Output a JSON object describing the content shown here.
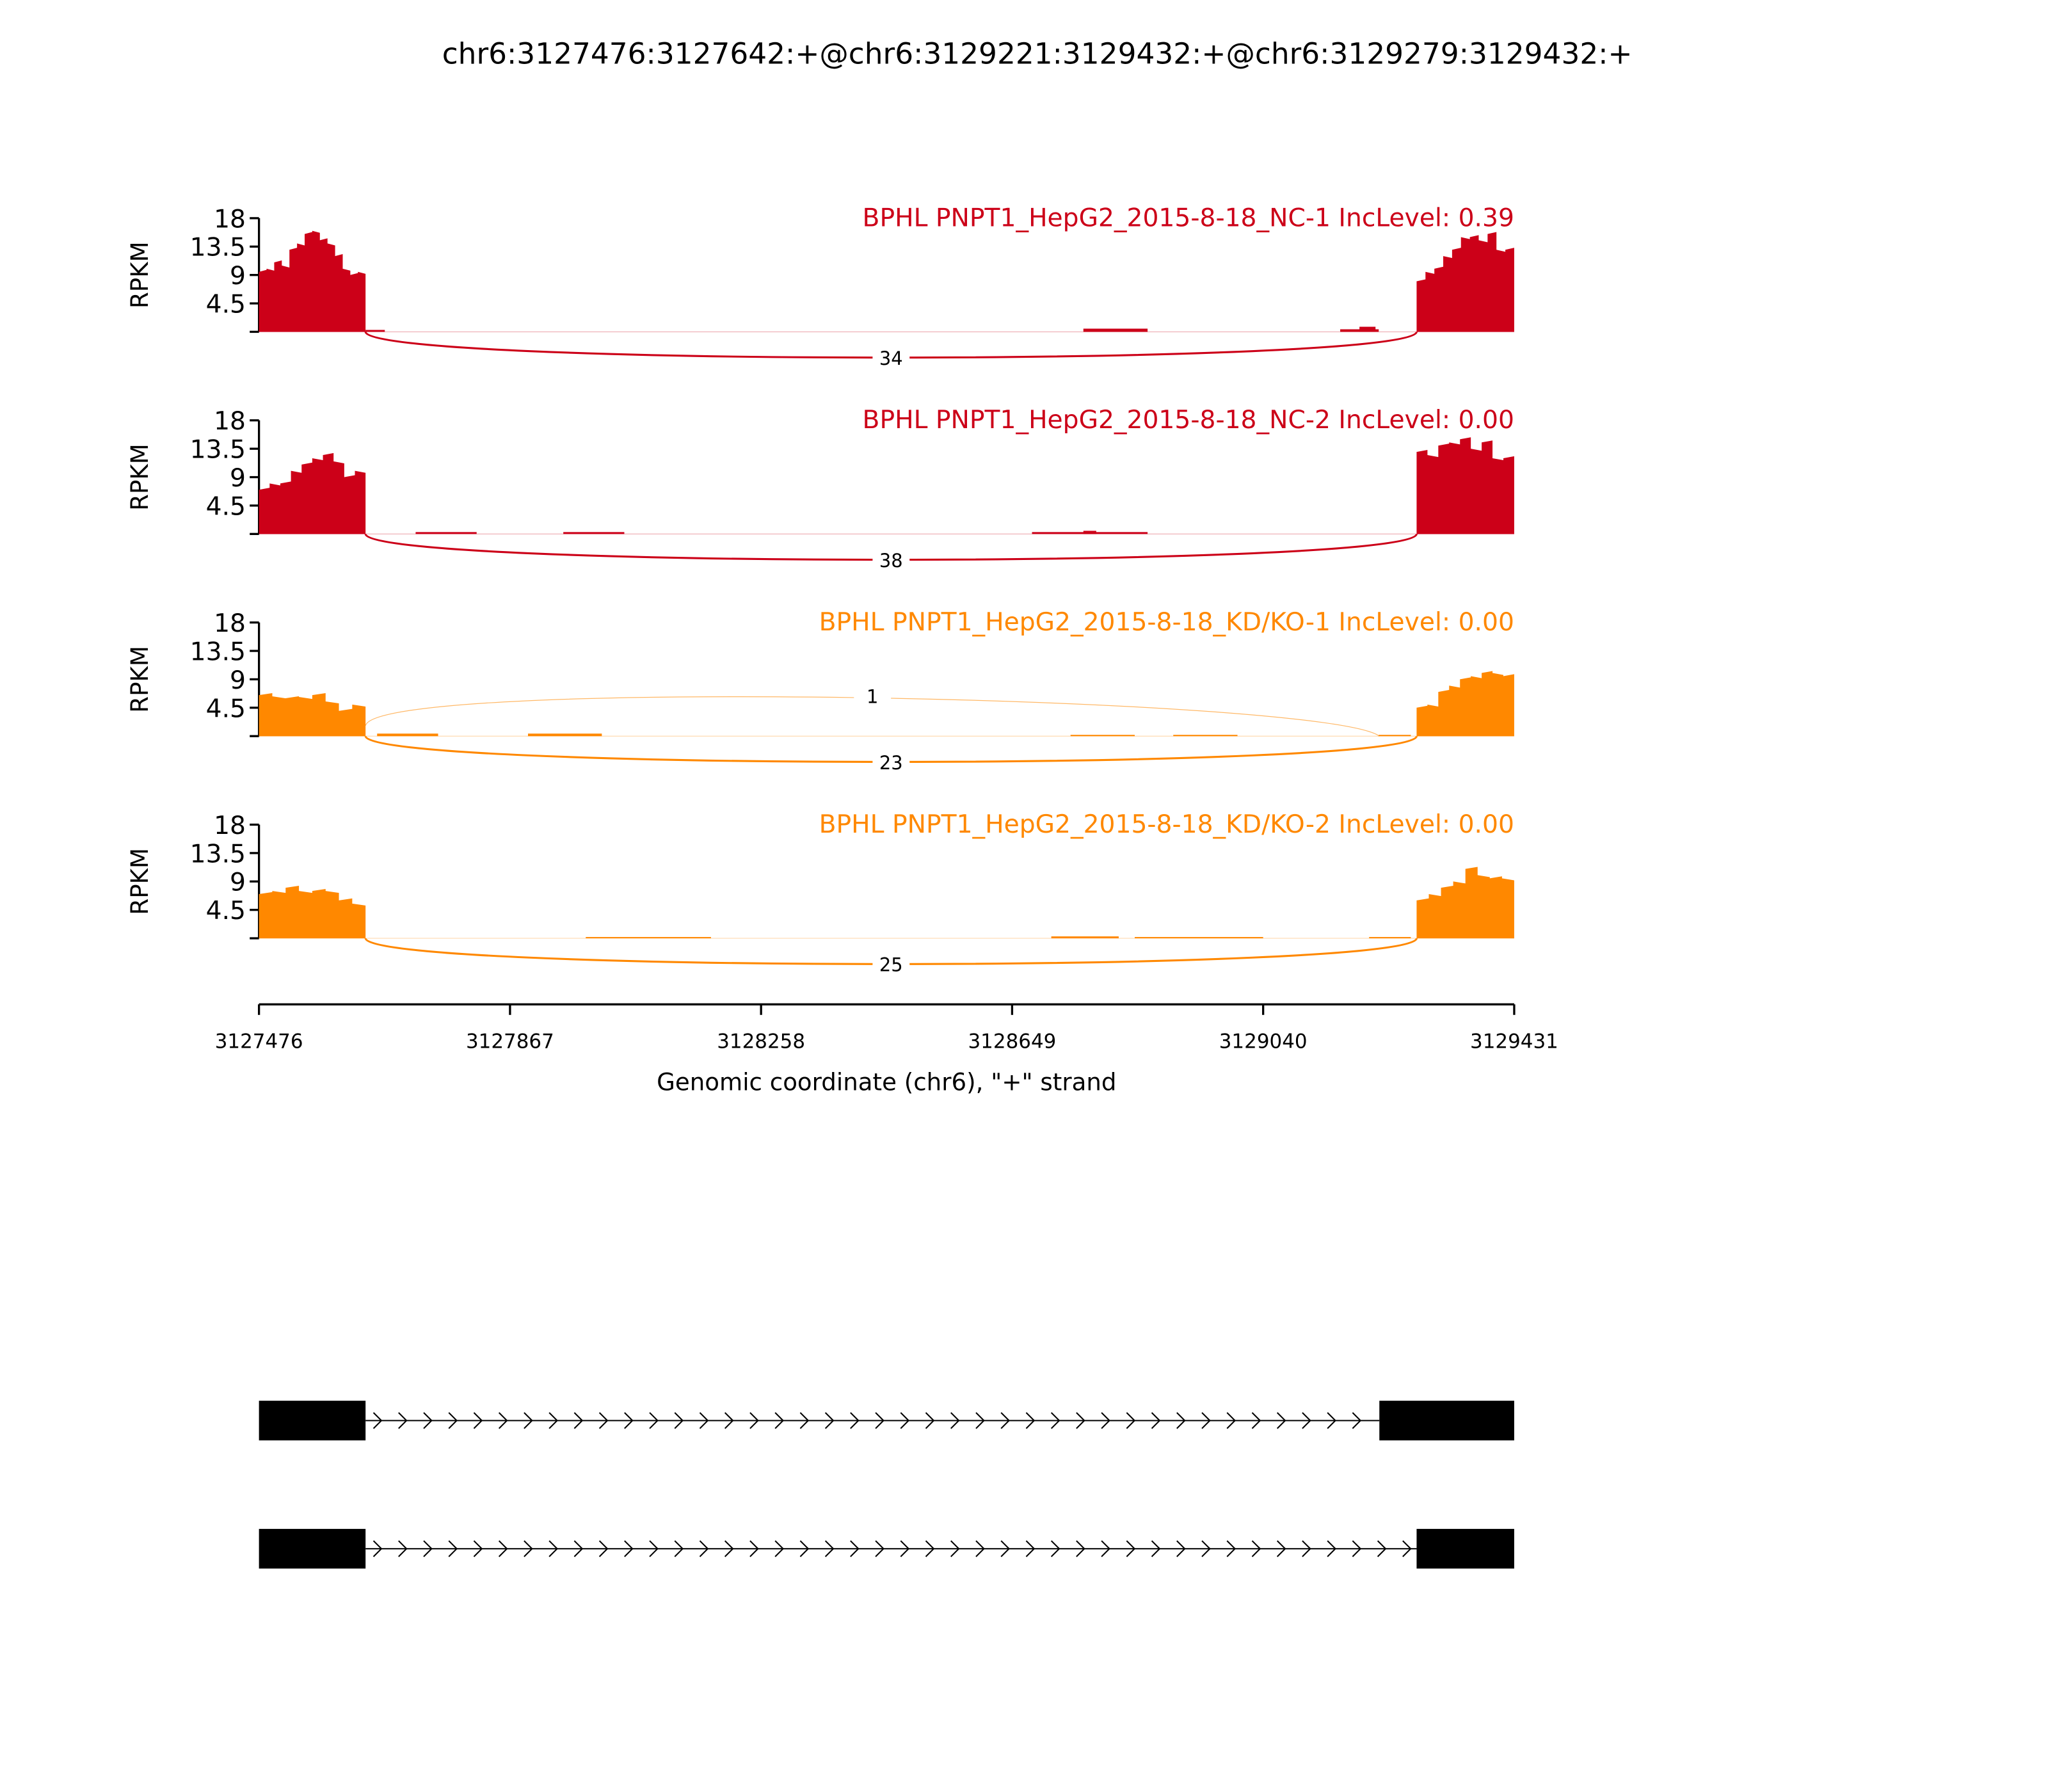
{
  "chart_data": {
    "type": "area",
    "title": "chr6:3127476:3127642:+@chr6:3129221:3129432:+@chr6:3129279:3129432:+",
    "xlabel": "Genomic coordinate (chr6), \"+\" strand",
    "xlim": [
      3127476,
      3129431
    ],
    "xticks": [
      "3127476",
      "3127867",
      "3128258",
      "3128649",
      "3129040",
      "3129431"
    ],
    "ylabel": "RPKM",
    "ylim": [
      0,
      18
    ],
    "yticks": [
      "4.5",
      "9",
      "13.5",
      "18"
    ],
    "grid": false,
    "tracks": [
      {
        "label": "BPHL PNPT1_HepG2_2015-8-18_NC-1 IncLevel: 0.39",
        "color": "#CC0018",
        "exon_coverage": [
          {
            "start": 3127476,
            "end": 3127642,
            "values": [
              9.5,
              10,
              11,
              10.5,
              13,
              14,
              15.5,
              16,
              14.5,
              14,
              12,
              10,
              9,
              9.5
            ]
          },
          {
            "start": 3129279,
            "end": 3129431,
            "values": [
              8,
              9.5,
              10,
              12,
              13,
              15,
              15,
              14.5,
              15.5,
              13,
              13
            ]
          }
        ],
        "intron_coverage": [
          [
            3127642,
            3127672,
            0.3
          ],
          [
            3128760,
            3128860,
            0.5
          ],
          [
            3129160,
            3129220,
            0.4
          ],
          [
            3129190,
            3129215,
            0.8
          ]
        ],
        "junctions": [
          {
            "start": 3127642,
            "end": 3129279,
            "count": "34",
            "side": "below"
          }
        ]
      },
      {
        "label": "BPHL PNPT1_HepG2_2015-8-18_NC-2 IncLevel: 0.00",
        "color": "#CC0018",
        "exon_coverage": [
          {
            "start": 3127476,
            "end": 3127642,
            "values": [
              7,
              8,
              8,
              10,
              11,
              12,
              12.5,
              11.5,
              9,
              10
            ]
          },
          {
            "start": 3129279,
            "end": 3129431,
            "values": [
              13,
              12.5,
              14,
              14.5,
              15,
              13.5,
              14.5,
              12,
              12
            ]
          }
        ],
        "intron_coverage": [
          [
            3127720,
            3127815,
            0.3
          ],
          [
            3127950,
            3128045,
            0.3
          ],
          [
            3128680,
            3128860,
            0.3
          ],
          [
            3128760,
            3128780,
            0.5
          ]
        ],
        "junctions": [
          {
            "start": 3127642,
            "end": 3129279,
            "count": "38",
            "side": "below"
          }
        ]
      },
      {
        "label": "BPHL PNPT1_HepG2_2015-8-18_KD/KO-1 IncLevel: 0.00",
        "color": "#FF8800",
        "exon_coverage": [
          {
            "start": 3127476,
            "end": 3127642,
            "values": [
              6.5,
              6.3,
              6,
              6.2,
              6.5,
              5.5,
              4,
              5
            ]
          },
          {
            "start": 3129279,
            "end": 3129431,
            "values": [
              4.5,
              5,
              7,
              8,
              9,
              9.5,
              10,
              10,
              9.5
            ]
          }
        ],
        "intron_coverage": [
          [
            3127660,
            3127755,
            0.4
          ],
          [
            3127895,
            3128010,
            0.4
          ],
          [
            3128740,
            3128840,
            0.2
          ],
          [
            3128900,
            3129000,
            0.2
          ],
          [
            3129220,
            3129270,
            0.2
          ]
        ],
        "junctions": [
          {
            "start": 3127642,
            "end": 3129221,
            "count": "1",
            "side": "above"
          },
          {
            "start": 3127642,
            "end": 3129279,
            "count": "23",
            "side": "below"
          }
        ]
      },
      {
        "label": "BPHL PNPT1_HepG2_2015-8-18_KD/KO-2 IncLevel: 0.00",
        "color": "#FF8800",
        "exon_coverage": [
          {
            "start": 3127476,
            "end": 3127642,
            "values": [
              7,
              7.5,
              8,
              7.5,
              7.5,
              7.5,
              6,
              5.5
            ]
          },
          {
            "start": 3129279,
            "end": 3129431,
            "values": [
              6,
              7,
              8,
              9,
              11,
              10,
              9.5,
              9.5
            ]
          }
        ],
        "intron_coverage": [
          [
            3127985,
            3128180,
            0.2
          ],
          [
            3128710,
            3128815,
            0.3
          ],
          [
            3128840,
            3129040,
            0.2
          ],
          [
            3129205,
            3129270,
            0.2
          ]
        ],
        "junctions": [
          {
            "start": 3127642,
            "end": 3129279,
            "count": "25",
            "side": "below"
          }
        ]
      }
    ],
    "gene_models": [
      {
        "exons": [
          [
            3127476,
            3127642
          ],
          [
            3129221,
            3129432
          ]
        ]
      },
      {
        "exons": [
          [
            3127476,
            3127642
          ],
          [
            3129279,
            3129432
          ]
        ]
      }
    ]
  }
}
